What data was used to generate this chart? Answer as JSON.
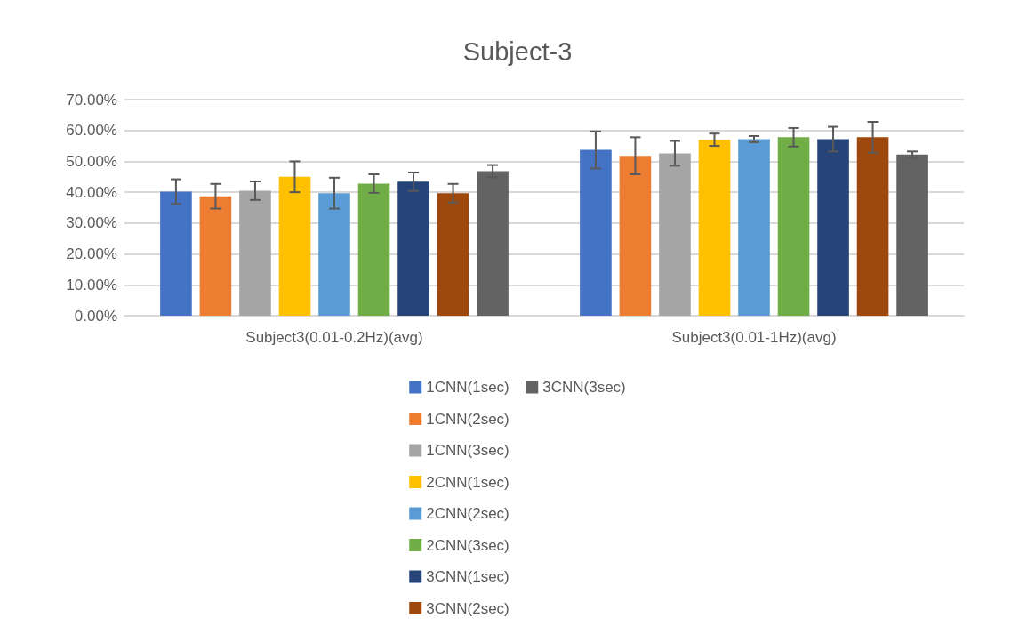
{
  "chart_data": {
    "type": "bar",
    "title": "Subject-3",
    "categories": [
      "Subject3(0.01-0.2Hz)(avg)",
      "Subject3(0.01-1Hz)(avg)"
    ],
    "series": [
      {
        "name": "1CNN(1sec)",
        "color": "#4472c4",
        "values": [
          40.2,
          53.7
        ],
        "errors": [
          4,
          6
        ]
      },
      {
        "name": "1CNN(2sec)",
        "color": "#ed7d31",
        "values": [
          38.7,
          51.8
        ],
        "errors": [
          4,
          6
        ]
      },
      {
        "name": "1CNN(3sec)",
        "color": "#a5a5a5",
        "values": [
          40.5,
          52.6
        ],
        "errors": [
          3,
          4
        ]
      },
      {
        "name": "2CNN(1sec)",
        "color": "#ffc000",
        "values": [
          45.0,
          57.0
        ],
        "errors": [
          5,
          2
        ]
      },
      {
        "name": "2CNN(2sec)",
        "color": "#5b9bd5",
        "values": [
          39.7,
          57.2
        ],
        "errors": [
          5,
          1
        ]
      },
      {
        "name": "2CNN(3sec)",
        "color": "#70ad47",
        "values": [
          42.8,
          57.8
        ],
        "errors": [
          3,
          3
        ]
      },
      {
        "name": "3CNN(1sec)",
        "color": "#264478",
        "values": [
          43.4,
          57.2
        ],
        "errors": [
          3,
          4
        ]
      },
      {
        "name": "3CNN(2sec)",
        "color": "#9e480e",
        "values": [
          39.7,
          57.8
        ],
        "errors": [
          3,
          5
        ]
      },
      {
        "name": "3CNN(3sec)",
        "color": "#636363",
        "values": [
          46.8,
          52.2
        ],
        "errors": [
          2,
          1
        ]
      }
    ],
    "ylim": [
      0,
      70
    ],
    "yticks": [
      {
        "value": 0,
        "label": "0.00%"
      },
      {
        "value": 10,
        "label": "10.00%"
      },
      {
        "value": 20,
        "label": "20.00%"
      },
      {
        "value": 30,
        "label": "30.00%"
      },
      {
        "value": 40,
        "label": "40.00%"
      },
      {
        "value": 50,
        "label": "50.00%"
      },
      {
        "value": 60,
        "label": "60.00%"
      },
      {
        "value": 70,
        "label": "70.00%"
      }
    ],
    "grid": "y",
    "legend": "bottom"
  }
}
